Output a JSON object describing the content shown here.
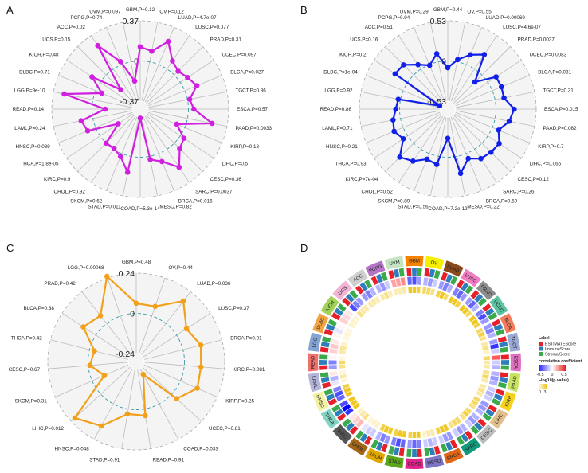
{
  "panels": {
    "a": "A",
    "b": "B",
    "c": "C",
    "d": "D"
  },
  "chart_data": [
    {
      "type": "radar",
      "panel": "A",
      "color": "#d11fe0",
      "range": [
        -0.37,
        0.37
      ],
      "tick_labels": [
        "0.37",
        "0",
        "-0.37"
      ],
      "categories": [
        "GBM,P=0.12",
        "OV,P=0.12",
        "LUAD,P=4.7e-07",
        "LUSC,P=0.077",
        "PRAD,P=0.31",
        "UCEC,P=0.097",
        "BLCA,P=0.027",
        "TGCT,P=0.86",
        "ESCA,P=0.57",
        "PAAD,P=0.0033",
        "KIRP,P=0.18",
        "LIHC,P=0.5",
        "CESC,P=0.36",
        "SARC,P=0.0037",
        "BRCA,P=0.016",
        "MESO,P=0.82",
        "COAD,P=5.3e-14",
        "STAD,P=0.011",
        "SKCM,P=0.62",
        "CHOL,P=0.92",
        "KIRC,P=0.9",
        "THCA,P=1.8e-05",
        "HNSC,P=0.089",
        "LAML,P=0.24",
        "READ,P=0.14",
        "LGG,P=9e-10",
        "DLBC,P=0.71",
        "KICH,P=0.48",
        "UCS,P=0.15",
        "ACC,P=0.02",
        "PCPG,P=0.74",
        "UVM,P=0.097"
      ],
      "values": [
        0.13,
        0.1,
        0.23,
        0.09,
        0.05,
        0.08,
        0.12,
        0.02,
        0.05,
        0.23,
        -0.08,
        0.04,
        0.07,
        0.2,
        0.08,
        0.03,
        -0.36,
        0.15,
        0.03,
        -0.01,
        0.0,
        -0.2,
        0.08,
        0.11,
        -0.12,
        0.27,
        -0.06,
        0.09,
        -0.19,
        0.26,
        0.03,
        -0.18
      ]
    },
    {
      "type": "radar",
      "panel": "B",
      "color": "#1020e8",
      "range": [
        -0.53,
        0.53
      ],
      "tick_labels": [
        "0.53",
        "0",
        "-0.53"
      ],
      "categories": [
        "GBM,P=0.44",
        "OV,P=0.55",
        "LUAD,P=0.00069",
        "LUSC,P=4.6e-07",
        "PRAD,P=0.0037",
        "UCEC,P=0.0083",
        "BLCA,P=0.031",
        "TGCT,P=0.31",
        "ESCA,P=0.015",
        "PAAD,P=0.082",
        "KIRP,P=0.7",
        "LIHC,P=0.066",
        "CESC,P=0.12",
        "SARC,P=0.26",
        "BRCA,P=0.59",
        "MESO,P=0.22",
        "COAD,P=7.2e-12",
        "STAD,P=0.56",
        "SKCM,P=0.89",
        "CHOL,P=0.52",
        "KIRC,P=7e-04",
        "THCA,P=0.93",
        "HNSC,P=0.21",
        "LAML,P=0.71",
        "READ,P=0.86",
        "LGG,P=0.92",
        "DLBC,P=1e-04",
        "KICH,P=0.2",
        "UCS,P=0.16",
        "ACC,P=0.51",
        "PCPG,P=0.94",
        "UVM,P=0.29"
      ],
      "values": [
        -0.09,
        0.03,
        0.14,
        0.23,
        -0.13,
        0.13,
        0.13,
        0.12,
        0.24,
        0.19,
        0.09,
        0.18,
        0.17,
        0.15,
        0.07,
        0.23,
        -0.25,
        0.11,
        0.08,
        0.19,
        0.26,
        0.07,
        0.13,
        0.1,
        0.05,
        0.03,
        -0.52,
        0.2,
        0.19,
        0.07,
        -0.01,
        0.11
      ]
    },
    {
      "type": "radar",
      "panel": "C",
      "color": "#f2a01a",
      "range": [
        -0.24,
        0.24
      ],
      "tick_labels": [
        "0.24",
        "0",
        "-0.24"
      ],
      "categories": [
        "GBM,P=0.48",
        "OV,P=0.44",
        "LUAD,P=0.036",
        "LUSC,P=0.37",
        "BRCA,P=0.01",
        "KIRC,P=0.081",
        "KIRP,P=0.25",
        "UCEC,P=0.81",
        "COAD,P=0.033",
        "READ,P=0.91",
        "STAD,P=0.91",
        "HNSC,P=0.048",
        "LIHC,P=0.012",
        "SKCM,P=0.31",
        "CESC,P=0.67",
        "THCA,P=0.42",
        "BLCA,P=0.38",
        "PRAD,P=0.42",
        "LGG,P=0.00068"
      ],
      "values": [
        0.06,
        0.06,
        0.17,
        0.07,
        0.11,
        0.1,
        0.11,
        0.04,
        -0.2,
        0.04,
        0.03,
        0.15,
        0.21,
        -0.08,
        -0.01,
        -0.03,
        0.09,
        0.06,
        0.25
      ]
    },
    {
      "type": "heatmap",
      "panel": "D",
      "categories": [
        "GBM",
        "OV",
        "LUAD",
        "LUSC",
        "PRAD",
        "UCEC",
        "BLCA",
        "TGCT",
        "ESCA",
        "PAAD",
        "KIRP",
        "LIHC",
        "CESC",
        "SARC",
        "BRCA",
        "MESO",
        "COAD",
        "STAD",
        "SKCM",
        "CHOL",
        "KIRC",
        "THCA",
        "HNSC",
        "LAML",
        "READ",
        "LGG",
        "DLBC",
        "KICH",
        "UCS",
        "ACC",
        "PCPG",
        "UVM"
      ],
      "category_colors": [
        "#f58200",
        "#f5f000",
        "#8b4a1c",
        "#f07cc4",
        "#8c8c8c",
        "#5cc4a0",
        "#f47c5c",
        "#9aaad6",
        "#e070c0",
        "#c8e262",
        "#f5d21e",
        "#e2c08e",
        "#bcbcbc",
        "#139a7c",
        "#e0661a",
        "#7c74c4",
        "#e0248c",
        "#5ca61c",
        "#e2a600",
        "#a0661a",
        "#555555",
        "#84d4c4",
        "#f2f2a2",
        "#b4b4d8",
        "#f2706c",
        "#84a4d4",
        "#f2a444",
        "#a2d256",
        "#f2b4d4",
        "#cfcfcf",
        "#b474c4",
        "#c4e4c4"
      ],
      "legend": {
        "label_title": "Label",
        "labels": [
          "ESTIMATEScore",
          "ImmuneScore",
          "StromalScore"
        ],
        "label_colors": [
          "#e8202a",
          "#2e7ebc",
          "#3aaa4a"
        ],
        "corr_title": "correlation coefficient",
        "corr_ticks": [
          "-0.5",
          "0",
          "0.5"
        ],
        "corr_range": [
          -0.5,
          0.5
        ],
        "p_title": "−log10(p value)",
        "p_ticks": [
          "0",
          "3"
        ],
        "p_range": [
          0,
          3
        ]
      },
      "correlation": [
        [
          -0.3,
          -0.35,
          -0.2
        ],
        [
          -0.15,
          -0.2,
          -0.1
        ],
        [
          -0.2,
          -0.25,
          -0.15
        ],
        [
          -0.25,
          -0.3,
          -0.2
        ],
        [
          -0.2,
          -0.3,
          -0.15
        ],
        [
          -0.25,
          -0.35,
          -0.2
        ],
        [
          -0.2,
          -0.25,
          -0.15
        ],
        [
          -0.2,
          -0.4,
          -0.1
        ],
        [
          0.35,
          -0.1,
          -0.15
        ],
        [
          -0.15,
          -0.2,
          -0.15
        ],
        [
          -0.1,
          -0.15,
          -0.1
        ],
        [
          -0.2,
          -0.2,
          -0.15
        ],
        [
          -0.15,
          -0.2,
          -0.1
        ],
        [
          -0.15,
          -0.2,
          -0.1
        ],
        [
          -0.2,
          -0.2,
          -0.1
        ],
        [
          -0.1,
          -0.15,
          -0.1
        ],
        [
          -0.25,
          -0.3,
          -0.2
        ],
        [
          -0.3,
          -0.35,
          -0.25
        ],
        [
          -0.2,
          -0.25,
          -0.15
        ],
        [
          -0.1,
          -0.1,
          -0.05
        ],
        [
          0.15,
          0.1,
          0.05
        ],
        [
          -0.4,
          -0.5,
          -0.35
        ],
        [
          -0.3,
          -0.35,
          -0.25
        ],
        [
          -0.05,
          -0.15,
          0.05
        ],
        [
          -0.2,
          -0.25,
          0.02
        ],
        [
          0.1,
          0.12,
          0.05
        ],
        [
          0.02,
          -0.05,
          0.02
        ],
        [
          0.1,
          0.08,
          0.05
        ],
        [
          -0.35,
          -0.25,
          -0.2
        ],
        [
          -0.2,
          -0.25,
          -0.15
        ],
        [
          -0.15,
          -0.2,
          -0.1
        ],
        [
          0.2,
          0.2,
          0.25
        ]
      ],
      "neg_log10_p": [
        [
          3,
          3,
          2.5
        ],
        [
          2,
          2,
          1.5
        ],
        [
          2.5,
          3,
          2
        ],
        [
          3,
          3,
          2.5
        ],
        [
          3,
          3,
          2
        ],
        [
          3,
          3,
          2.5
        ],
        [
          2,
          2.5,
          1.5
        ],
        [
          1,
          1.5,
          0.5
        ],
        [
          2,
          1,
          1
        ],
        [
          1.5,
          2,
          1
        ],
        [
          1,
          1.5,
          1
        ],
        [
          2,
          2,
          1.5
        ],
        [
          2,
          2.5,
          1.5
        ],
        [
          2,
          2,
          1.5
        ],
        [
          3,
          3,
          2.5
        ],
        [
          1,
          1,
          0.5
        ],
        [
          3,
          3,
          2.5
        ],
        [
          3,
          3,
          2.5
        ],
        [
          3,
          3,
          2.5
        ],
        [
          0.5,
          0.5,
          0.3
        ],
        [
          1.5,
          1,
          0.5
        ],
        [
          3,
          3,
          3
        ],
        [
          3,
          3,
          2.5
        ],
        [
          0.3,
          1,
          0.3
        ],
        [
          1.5,
          2,
          0.2
        ],
        [
          1,
          1.2,
          0.5
        ],
        [
          0.2,
          0.3,
          0.2
        ],
        [
          0.5,
          0.5,
          0.3
        ],
        [
          1.5,
          1,
          1
        ],
        [
          1,
          1,
          0.8
        ],
        [
          1,
          1.5,
          0.8
        ],
        [
          0.8,
          0.8,
          1
        ]
      ]
    }
  ]
}
